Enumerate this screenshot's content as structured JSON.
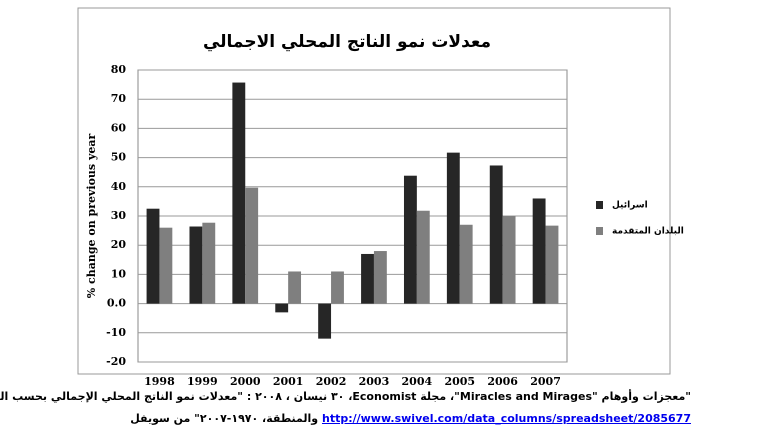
{
  "chart_data": {
    "type": "bar",
    "title": "معدلات نمو الناتج المحلي الاجمالي",
    "y_label": "% change on previous year",
    "categories": [
      "1998",
      "1999",
      "2000",
      "2001",
      "2002",
      "2003",
      "2004",
      "2005",
      "2006",
      "2007"
    ],
    "series": [
      {
        "name": "اسرائيل",
        "color": "#262626",
        "values": [
          32.5,
          26.4,
          75.7,
          -3,
          -12,
          17,
          43.8,
          51.7,
          47.3,
          36
        ]
      },
      {
        "name": "البلدان المتقدمة",
        "color": "#7f7f7f",
        "values": [
          26,
          27.7,
          39.7,
          11,
          11,
          18,
          31.8,
          27,
          30,
          26.7
        ]
      }
    ],
    "ylim": [
      -20,
      80
    ],
    "yticks": [
      {
        "value": -20,
        "label": "-20"
      },
      {
        "value": -10,
        "label": "-10"
      },
      {
        "value": 0,
        "label": "0.0"
      },
      10,
      20,
      30,
      40,
      50,
      60,
      70,
      80
    ],
    "grid": true,
    "legend": "right"
  },
  "caption": {
    "line1": "\"معجزات وأوهام \"Miracles and Mirages\"، مجلة Economist، ٣٠ نيسان ، ٢٠٠٨ : \"معدلات نمو الناتج المحلي الإجمالي بحسب الدولة",
    "line2": "والمنطقة، ١٩٧٠-٢٠٠٧\" من سويفل",
    "link": "http://www.swivel.com/data_columns/spreadsheet/2085677"
  }
}
